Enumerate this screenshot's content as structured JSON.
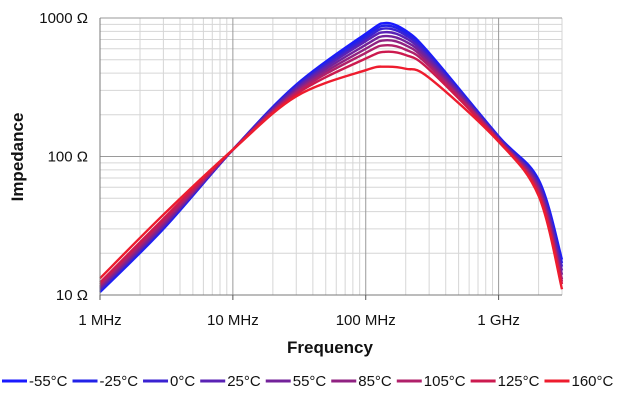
{
  "chart_data": {
    "type": "line",
    "xscale": "log",
    "yscale": "log",
    "xlabel": "Frequency",
    "ylabel": "Impedance",
    "xlim": [
      1,
      3000
    ],
    "ylim": [
      10,
      1000
    ],
    "xticks": [
      {
        "value": 1,
        "label": "1 MHz"
      },
      {
        "value": 10,
        "label": "10 MHz"
      },
      {
        "value": 100,
        "label": "100 MHz"
      },
      {
        "value": 1000,
        "label": "1 GHz"
      }
    ],
    "yticks": [
      {
        "value": 10,
        "label": "10 Ω"
      },
      {
        "value": 100,
        "label": "100 Ω"
      },
      {
        "value": 1000,
        "label": "1000 Ω"
      }
    ],
    "grid": true,
    "legend_position": "bottom",
    "series": [
      {
        "name": "-55°C",
        "color": "#1a1aff",
        "points": [
          [
            1,
            10.5
          ],
          [
            3,
            30
          ],
          [
            10,
            112
          ],
          [
            30,
            330
          ],
          [
            100,
            770
          ],
          [
            140,
            920
          ],
          [
            200,
            810
          ],
          [
            300,
            560
          ],
          [
            1000,
            140
          ],
          [
            2000,
            68
          ],
          [
            3000,
            18
          ]
        ]
      },
      {
        "name": "-25°C",
        "color": "#2222e8",
        "points": [
          [
            1,
            10.7
          ],
          [
            3,
            30.5
          ],
          [
            10,
            112
          ],
          [
            30,
            325
          ],
          [
            100,
            740
          ],
          [
            140,
            880
          ],
          [
            200,
            780
          ],
          [
            300,
            545
          ],
          [
            1000,
            138
          ],
          [
            2000,
            66
          ],
          [
            3000,
            17
          ]
        ]
      },
      {
        "name": "0°C",
        "color": "#3a22d2",
        "points": [
          [
            1,
            10.9
          ],
          [
            3,
            31
          ],
          [
            10,
            112
          ],
          [
            30,
            320
          ],
          [
            100,
            710
          ],
          [
            140,
            840
          ],
          [
            200,
            750
          ],
          [
            300,
            530
          ],
          [
            1000,
            137
          ],
          [
            2000,
            64
          ],
          [
            3000,
            16
          ]
        ]
      },
      {
        "name": "25°C",
        "color": "#5a22b5",
        "points": [
          [
            1,
            11.1
          ],
          [
            3,
            31.5
          ],
          [
            10,
            112
          ],
          [
            30,
            312
          ],
          [
            100,
            680
          ],
          [
            140,
            790
          ],
          [
            200,
            715
          ],
          [
            300,
            510
          ],
          [
            1000,
            135
          ],
          [
            2000,
            62
          ],
          [
            3000,
            15
          ]
        ]
      },
      {
        "name": "55°C",
        "color": "#73229a",
        "points": [
          [
            1,
            11.3
          ],
          [
            3,
            32
          ],
          [
            10,
            112
          ],
          [
            30,
            305
          ],
          [
            100,
            640
          ],
          [
            140,
            740
          ],
          [
            200,
            675
          ],
          [
            300,
            490
          ],
          [
            1000,
            134
          ],
          [
            2000,
            60
          ],
          [
            3000,
            14
          ]
        ]
      },
      {
        "name": "85°C",
        "color": "#902282",
        "points": [
          [
            1,
            11.6
          ],
          [
            3,
            33
          ],
          [
            10,
            112
          ],
          [
            30,
            297
          ],
          [
            100,
            600
          ],
          [
            140,
            690
          ],
          [
            200,
            635
          ],
          [
            300,
            470
          ],
          [
            1000,
            132
          ],
          [
            2000,
            58
          ],
          [
            3000,
            13
          ]
        ]
      },
      {
        "name": "105°C",
        "color": "#b0206a",
        "points": [
          [
            1,
            11.9
          ],
          [
            3,
            34
          ],
          [
            10,
            112
          ],
          [
            30,
            290
          ],
          [
            100,
            560
          ],
          [
            140,
            635
          ],
          [
            200,
            590
          ],
          [
            300,
            450
          ],
          [
            1000,
            131
          ],
          [
            2000,
            56
          ],
          [
            3000,
            12.5
          ]
        ]
      },
      {
        "name": "125°C",
        "color": "#cc1a4f",
        "points": [
          [
            1,
            12.3
          ],
          [
            3,
            35.5
          ],
          [
            10,
            112
          ],
          [
            30,
            282
          ],
          [
            100,
            510
          ],
          [
            140,
            570
          ],
          [
            200,
            540
          ],
          [
            300,
            425
          ],
          [
            1000,
            130
          ],
          [
            2000,
            54
          ],
          [
            3000,
            12
          ]
        ]
      },
      {
        "name": "160°C",
        "color": "#ee1c2e",
        "points": [
          [
            1,
            13.2
          ],
          [
            3,
            38
          ],
          [
            10,
            112
          ],
          [
            30,
            272
          ],
          [
            100,
            420
          ],
          [
            140,
            445
          ],
          [
            200,
            430
          ],
          [
            300,
            370
          ],
          [
            1000,
            128
          ],
          [
            2000,
            52
          ],
          [
            3000,
            11
          ]
        ]
      }
    ]
  }
}
